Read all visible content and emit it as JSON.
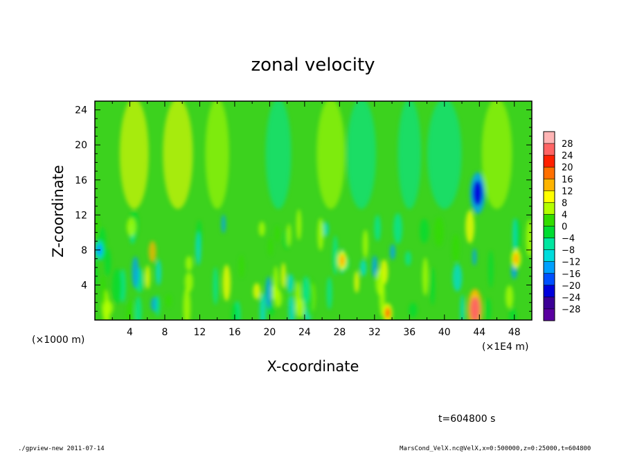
{
  "chart_data": {
    "type": "heatmap",
    "title": "zonal velocity",
    "xlabel": "X-coordinate",
    "ylabel": "Z-coordinate",
    "x_unit_left": "(×1000 m)",
    "x_unit_right": "(×1E4 m)",
    "x_ticks": [
      "4",
      "8",
      "12",
      "16",
      "20",
      "24",
      "28",
      "32",
      "36",
      "40",
      "44",
      "48"
    ],
    "y_ticks": [
      "4",
      "8",
      "12",
      "16",
      "20",
      "24"
    ],
    "xlim": [
      0,
      50
    ],
    "ylim": [
      0,
      25
    ],
    "colorbar": {
      "labels": [
        "28",
        "24",
        "20",
        "16",
        "12",
        "8",
        "4",
        "0",
        "−4",
        "−8",
        "−12",
        "−16",
        "−20",
        "−24",
        "−28"
      ],
      "levels": [
        28,
        24,
        20,
        16,
        12,
        8,
        4,
        0,
        -4,
        -8,
        -12,
        -16,
        -20,
        -24,
        -28
      ],
      "colors": [
        "#ffb4b4",
        "#ff6464",
        "#ff2000",
        "#ff7000",
        "#ffb400",
        "#ffff00",
        "#b4ff00",
        "#32dc00",
        "#00dc32",
        "#00e6a0",
        "#00dcdc",
        "#00a0ff",
        "#0050ff",
        "#0000dc",
        "#3c0096",
        "#5a00a0"
      ]
    },
    "features": [
      {
        "x": 43.5,
        "z": 1.2,
        "value": 26
      },
      {
        "x": 43.8,
        "z": 14.5,
        "value": -22
      },
      {
        "x": 0.5,
        "z": 8,
        "value": -16
      },
      {
        "x": 48.2,
        "z": 7,
        "value": 14
      },
      {
        "x": 28.3,
        "z": 6.8,
        "value": 14
      },
      {
        "x": 33.5,
        "z": 0.8,
        "value": 18
      }
    ]
  },
  "annotation_time": "t=604800 s",
  "footer_left": "./gpview-new  2011-07-14",
  "footer_right": "MarsCond_VelX.nc@VelX,x=0:500000,z=0:25000,t=604800"
}
